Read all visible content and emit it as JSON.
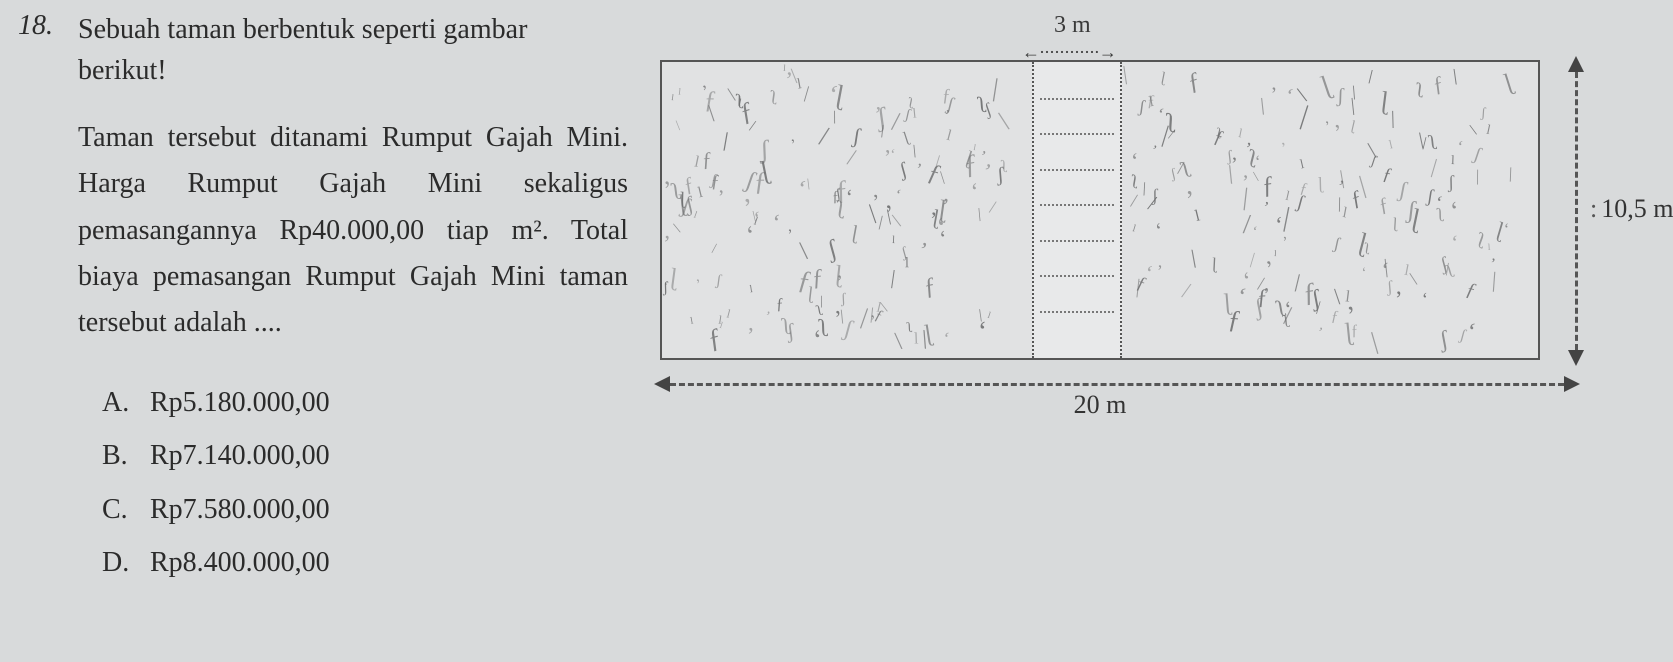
{
  "question": {
    "number": "18.",
    "stem_line1": "Sebuah taman berbentuk seperti gambar",
    "stem_line2": "berikut!",
    "body": "Taman tersebut ditanami Rumput Gajah Mini. Harga Rumput Gajah Mini sekaligus pemasangannya Rp40.000,00 tiap m². Total biaya pemasangan Rumput Gajah Mini taman tersebut adalah ....",
    "options": [
      {
        "letter": "A.",
        "text": "Rp5.180.000,00"
      },
      {
        "letter": "B.",
        "text": "Rp7.140.000,00"
      },
      {
        "letter": "C.",
        "text": "Rp7.580.000,00"
      },
      {
        "letter": "D.",
        "text": "Rp8.400.000,00"
      }
    ]
  },
  "figure": {
    "width_m": "20 m",
    "height_m": "10,5 m",
    "path_width_m": "3 m",
    "colors": {
      "page_bg": "#d8dadb",
      "border": "#555555",
      "grass_mark": "#6b6c6d",
      "dash": "#555555"
    }
  }
}
